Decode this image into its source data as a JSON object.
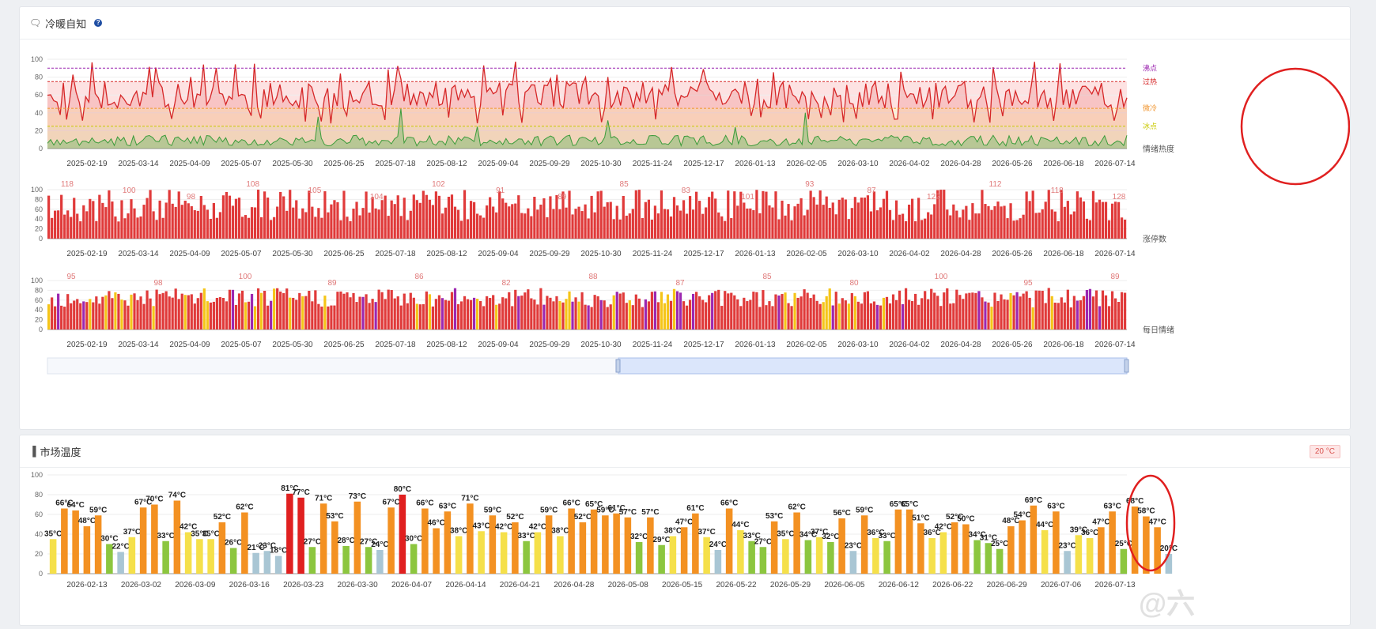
{
  "panel1": {
    "title": "冷暖自知",
    "icon": "chat-bubble-icon",
    "help": "?"
  },
  "panel2": {
    "title": "市场温度",
    "icon": "bar-chart-icon",
    "badge": "20 °C"
  },
  "watermark": "@六",
  "chart_data": [
    {
      "type": "line",
      "series": [
        {
          "name": "情绪热度",
          "color": "#d62728"
        }
      ],
      "ylim": [
        0,
        100
      ],
      "yticks": [
        0,
        20,
        40,
        60,
        80,
        100
      ],
      "reference_lines": [
        {
          "label": "沸点",
          "value": 90,
          "color": "#9c27b0"
        },
        {
          "label": "过热",
          "value": 75,
          "color": "#d62728"
        },
        {
          "label": "微冷",
          "value": 45,
          "color": "#f0932b"
        },
        {
          "label": "冰点",
          "value": 25,
          "color": "#c9c900"
        }
      ],
      "xticks": [
        "2025-02-19",
        "2025-03-14",
        "2025-04-09",
        "2025-05-07",
        "2025-05-30",
        "2025-06-25",
        "2025-07-18",
        "2025-08-12",
        "2025-09-04",
        "2025-09-29",
        "2025-10-30",
        "2025-11-24",
        "2025-12-17",
        "2026-01-13",
        "2026-02-05",
        "2026-03-10",
        "2026-04-02",
        "2026-04-28",
        "2026-05-26",
        "2026-06-18",
        "2026-07-14"
      ]
    },
    {
      "type": "bar",
      "series": [
        {
          "name": "涨停数",
          "color": "#e03a3a"
        }
      ],
      "ylim": [
        0,
        100
      ],
      "yticks": [
        0,
        20,
        40,
        60,
        80,
        100
      ],
      "labels_sample": [
        "118",
        "100",
        "98",
        "108",
        "105",
        "104",
        "102",
        "91",
        "89",
        "85",
        "83",
        "101",
        "93",
        "87",
        "122",
        "112",
        "118",
        "128"
      ],
      "xticks": [
        "2025-02-19",
        "2025-03-14",
        "2025-04-09",
        "2025-05-07",
        "2025-05-30",
        "2025-06-25",
        "2025-07-18",
        "2025-08-12",
        "2025-09-04",
        "2025-09-29",
        "2025-10-30",
        "2025-11-24",
        "2025-12-17",
        "2026-01-13",
        "2026-02-05",
        "2026-03-10",
        "2026-04-02",
        "2026-04-28",
        "2026-05-26",
        "2026-06-18",
        "2026-07-14"
      ]
    },
    {
      "type": "bar",
      "series": [
        {
          "name": "每日情绪"
        }
      ],
      "ylim": [
        0,
        100
      ],
      "yticks": [
        0,
        20,
        40,
        60,
        80,
        100
      ],
      "labels_sample": [
        "95",
        "98",
        "100",
        "89",
        "86",
        "82",
        "88",
        "87",
        "85",
        "80",
        "100",
        "95",
        "89"
      ],
      "xticks": [
        "2025-02-19",
        "2025-03-14",
        "2025-04-09",
        "2025-05-07",
        "2025-05-30",
        "2025-06-25",
        "2025-07-18",
        "2025-08-12",
        "2025-09-04",
        "2025-09-29",
        "2025-10-30",
        "2025-11-24",
        "2025-12-17",
        "2026-01-13",
        "2026-02-05",
        "2026-03-10",
        "2026-04-02",
        "2026-04-28",
        "2026-05-26",
        "2026-06-18",
        "2026-07-14"
      ]
    },
    {
      "type": "bar",
      "ylim": [
        0,
        100
      ],
      "yticks": [
        0,
        20,
        40,
        60,
        80,
        100
      ],
      "unit": "°C",
      "values": [
        35,
        66,
        64,
        48,
        59,
        30,
        22,
        37,
        67,
        70,
        33,
        74,
        42,
        35,
        35,
        52,
        26,
        62,
        21,
        23,
        18,
        81,
        77,
        27,
        71,
        53,
        28,
        73,
        27,
        24,
        67,
        80,
        30,
        66,
        46,
        63,
        38,
        71,
        43,
        59,
        42,
        52,
        33,
        42,
        59,
        38,
        66,
        52,
        65,
        59,
        61,
        57,
        32,
        57,
        29,
        38,
        47,
        61,
        37,
        24,
        66,
        44,
        33,
        27,
        53,
        35,
        62,
        34,
        37,
        32,
        56,
        23,
        59,
        36,
        33,
        65,
        65,
        51,
        36,
        42,
        52,
        50,
        34,
        31,
        25,
        48,
        54,
        69,
        44,
        63,
        23,
        39,
        36,
        47,
        63,
        25,
        68,
        58,
        47,
        20
      ],
      "xticks": [
        "2026-02-13",
        "2026-03-02",
        "2026-03-09",
        "2026-03-16",
        "2026-03-23",
        "2026-03-30",
        "2026-04-07",
        "2026-04-14",
        "2026-04-21",
        "2026-04-28",
        "2026-05-08",
        "2026-05-15",
        "2026-05-22",
        "2026-05-29",
        "2026-06-05",
        "2026-06-12",
        "2026-06-22",
        "2026-06-29",
        "2026-07-06",
        "2026-07-13"
      ]
    }
  ]
}
